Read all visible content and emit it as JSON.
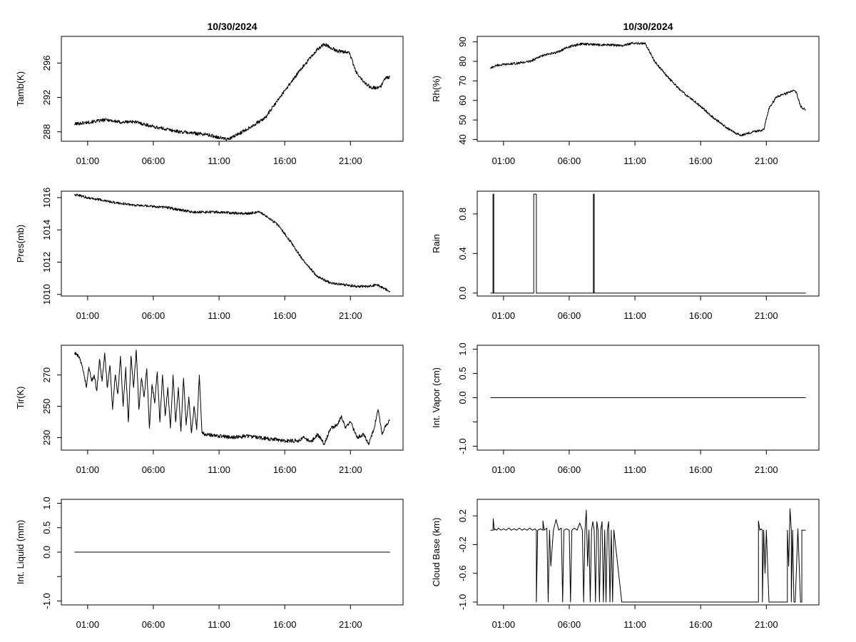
{
  "chart_data": [
    {
      "panel": "left-1",
      "type": "line",
      "title": "10/30/2024",
      "xlabel": "",
      "ylabel": "Tamb(K)",
      "x_ticks": [
        "01:00",
        "06:00",
        "11:00",
        "16:00",
        "21:00"
      ],
      "x_tick_hours": [
        1,
        6,
        11,
        16,
        21
      ],
      "xlim": [
        -1,
        25
      ],
      "ylim": [
        286.9,
        299.1
      ],
      "y_ticks": [
        288,
        292,
        296
      ],
      "y_tick_labels": [
        "288",
        "292",
        "296"
      ],
      "noise": 0.2,
      "series": [
        {
          "name": "Tamb",
          "x": [
            0,
            1,
            2.5,
            3.5,
            4.5,
            6,
            8,
            10,
            11.7,
            13,
            14.5,
            16,
            17.5,
            18.5,
            19,
            20,
            20.9,
            21.4,
            22,
            22.5,
            23,
            23.3,
            23.6,
            24
          ],
          "y": [
            288.9,
            289.1,
            289.4,
            289.1,
            289.2,
            288.6,
            288.0,
            287.7,
            287.1,
            288.2,
            289.6,
            292.8,
            295.8,
            297.6,
            298.2,
            297.4,
            297.3,
            295.0,
            293.8,
            293.2,
            293.1,
            293.2,
            294.2,
            294.4
          ]
        }
      ]
    },
    {
      "panel": "right-1",
      "type": "line",
      "title": "10/30/2024",
      "xlabel": "",
      "ylabel": "Rh(%)",
      "x_ticks": [
        "01:00",
        "06:00",
        "11:00",
        "16:00",
        "21:00"
      ],
      "x_tick_hours": [
        1,
        6,
        11,
        16,
        21
      ],
      "xlim": [
        -1,
        25
      ],
      "ylim": [
        39.1,
        92.8
      ],
      "y_ticks": [
        40,
        50,
        60,
        70,
        80,
        90
      ],
      "y_tick_labels": [
        "40",
        "50",
        "60",
        "70",
        "80",
        "90"
      ],
      "noise": 0.6,
      "series": [
        {
          "name": "Rh",
          "x": [
            0,
            0.5,
            2,
            3,
            4,
            5,
            6,
            7,
            8,
            9,
            10,
            11,
            11.8,
            12.5,
            13.5,
            14.5,
            16,
            17,
            18,
            19,
            20,
            20.8,
            21.2,
            21.8,
            22.5,
            23,
            23.3,
            23.6,
            24
          ],
          "y": [
            76.5,
            78,
            79,
            80,
            83,
            84.5,
            87.5,
            89,
            88.5,
            88.5,
            88,
            89.5,
            89,
            80,
            72,
            65,
            57,
            51,
            46,
            42,
            44,
            45,
            56,
            62,
            63.5,
            65,
            64,
            57,
            55
          ]
        }
      ]
    },
    {
      "panel": "left-2",
      "type": "line",
      "title": "",
      "xlabel": "",
      "ylabel": "Pres(mb)",
      "x_ticks": [
        "01:00",
        "06:00",
        "11:00",
        "16:00",
        "21:00"
      ],
      "x_tick_hours": [
        1,
        6,
        11,
        16,
        21
      ],
      "xlim": [
        -1,
        25
      ],
      "ylim": [
        1009.9,
        1016.4
      ],
      "y_ticks": [
        1010,
        1012,
        1014,
        1016
      ],
      "y_tick_labels": [
        "1010",
        "1012",
        "1014",
        "1016"
      ],
      "noise": 0.08,
      "series": [
        {
          "name": "Pres",
          "x": [
            0,
            1,
            3,
            5,
            7,
            9,
            11,
            13,
            14,
            14.5,
            15.5,
            16.5,
            17.5,
            18.5,
            19.5,
            20.5,
            21.5,
            22.5,
            23,
            23.5,
            24
          ],
          "y": [
            1016.2,
            1016.0,
            1015.7,
            1015.5,
            1015.4,
            1015.1,
            1015.1,
            1015.0,
            1015.1,
            1014.9,
            1014.3,
            1013.2,
            1012.0,
            1011.1,
            1010.7,
            1010.6,
            1010.5,
            1010.5,
            1010.6,
            1010.4,
            1010.2
          ]
        }
      ]
    },
    {
      "panel": "right-2",
      "type": "line",
      "title": "",
      "xlabel": "",
      "ylabel": "Rain",
      "x_ticks": [
        "01:00",
        "06:00",
        "11:00",
        "16:00",
        "21:00"
      ],
      "x_tick_hours": [
        1,
        6,
        11,
        16,
        21
      ],
      "xlim": [
        -1,
        25
      ],
      "ylim": [
        -0.03,
        1.03
      ],
      "y_ticks": [
        0.0,
        0.4,
        0.8
      ],
      "y_tick_labels": [
        "0.0",
        "0.4",
        "0.8"
      ],
      "noise": 0,
      "series": [
        {
          "name": "Rain",
          "x": [
            0,
            0.2,
            0.2,
            0.26,
            0.26,
            3.3,
            3.3,
            3.5,
            3.5,
            7.84,
            7.84,
            7.9,
            7.9,
            24
          ],
          "y": [
            0,
            0,
            1,
            1,
            0,
            0,
            1,
            1,
            0,
            0,
            1,
            1,
            0,
            0
          ]
        }
      ]
    },
    {
      "panel": "left-3",
      "type": "line",
      "title": "",
      "xlabel": "",
      "ylabel": "Tir(K)",
      "x_ticks": [
        "01:00",
        "06:00",
        "11:00",
        "16:00",
        "21:00"
      ],
      "x_tick_hours": [
        1,
        6,
        11,
        16,
        21
      ],
      "xlim": [
        -1,
        25
      ],
      "ylim": [
        222,
        289
      ],
      "y_ticks": [
        230,
        250,
        270
      ],
      "y_tick_labels": [
        "230",
        "250",
        "270"
      ],
      "noise": 1.2,
      "series": [
        {
          "name": "Tir",
          "x": [
            0,
            0.3,
            0.5,
            0.7,
            0.9,
            1.1,
            1.3,
            1.5,
            1.7,
            1.9,
            2.1,
            2.3,
            2.5,
            2.7,
            2.9,
            3.1,
            3.3,
            3.5,
            3.7,
            3.9,
            4.1,
            4.3,
            4.5,
            4.7,
            4.9,
            5.1,
            5.3,
            5.5,
            5.7,
            5.9,
            6.1,
            6.3,
            6.5,
            6.7,
            6.9,
            7.1,
            7.3,
            7.5,
            7.7,
            7.9,
            8.1,
            8.3,
            8.5,
            8.7,
            8.9,
            9.1,
            9.3,
            9.5,
            9.7,
            10,
            11,
            12,
            13,
            14,
            15,
            16,
            17,
            17.5,
            18,
            18.5,
            19,
            19.5,
            20,
            20.3,
            20.6,
            21,
            21.5,
            22,
            22.4,
            22.8,
            23.1,
            23.4,
            23.7,
            24
          ],
          "y": [
            284,
            282,
            278,
            272,
            262,
            275,
            266,
            270,
            260,
            280,
            266,
            284,
            262,
            276,
            248,
            270,
            258,
            282,
            250,
            275,
            240,
            282,
            262,
            286,
            248,
            268,
            256,
            274,
            236,
            264,
            252,
            272,
            240,
            270,
            244,
            262,
            236,
            270,
            240,
            262,
            234,
            268,
            238,
            256,
            233,
            250,
            235,
            270,
            233,
            232,
            231,
            230,
            231,
            230,
            229,
            228,
            228,
            230,
            227,
            232,
            226,
            236,
            238,
            244,
            236,
            240,
            230,
            232,
            226,
            236,
            248,
            232,
            238,
            241
          ]
        }
      ]
    },
    {
      "panel": "right-3",
      "type": "line",
      "title": "",
      "xlabel": "",
      "ylabel": "Int. Vapor (cm)",
      "x_ticks": [
        "01:00",
        "06:00",
        "11:00",
        "16:00",
        "21:00"
      ],
      "x_tick_hours": [
        1,
        6,
        11,
        16,
        21
      ],
      "xlim": [
        -1,
        25
      ],
      "ylim": [
        -1.08,
        1.08
      ],
      "y_ticks": [
        -1.0,
        -0.5,
        0.0,
        0.5,
        1.0
      ],
      "y_tick_labels": [
        "-1.0",
        "",
        "0.0",
        "0.5",
        "1.0"
      ],
      "noise": 0,
      "series": [
        {
          "name": "Int. Vapor",
          "x": [
            0,
            24
          ],
          "y": [
            0,
            0
          ]
        }
      ]
    },
    {
      "panel": "left-4",
      "type": "line",
      "title": "",
      "xlabel": "",
      "ylabel": "Int. Liquid (mm)",
      "x_ticks": [
        "01:00",
        "06:00",
        "11:00",
        "16:00",
        "21:00"
      ],
      "x_tick_hours": [
        1,
        6,
        11,
        16,
        21
      ],
      "xlim": [
        -1,
        25
      ],
      "ylim": [
        -1.08,
        1.08
      ],
      "y_ticks": [
        -1.0,
        -0.5,
        0.0,
        0.5,
        1.0
      ],
      "y_tick_labels": [
        "-1.0",
        "",
        "0.0",
        "0.5",
        "1.0"
      ],
      "noise": 0,
      "series": [
        {
          "name": "Int. Liquid",
          "x": [
            0,
            24
          ],
          "y": [
            0,
            0
          ]
        }
      ]
    },
    {
      "panel": "right-4",
      "type": "line",
      "title": "",
      "xlabel": "",
      "ylabel": "Cloud Base (km)",
      "x_ticks": [
        "01:00",
        "06:00",
        "11:00",
        "16:00",
        "21:00"
      ],
      "x_tick_hours": [
        1,
        6,
        11,
        16,
        21
      ],
      "xlim": [
        -1,
        25
      ],
      "ylim": [
        -1.04,
        0.43
      ],
      "y_ticks": [
        -1.0,
        -0.6,
        -0.2,
        0.2
      ],
      "y_tick_labels": [
        "-1.0",
        "-0.6",
        "-0.2",
        "0.2"
      ],
      "noise": 0,
      "series": [
        {
          "name": "Cloud Base",
          "x": [
            0,
            0.2,
            0.22,
            0.3,
            0.3,
            0.5,
            0.6,
            0.8,
            1.0,
            1.2,
            1.4,
            1.6,
            1.8,
            2.0,
            2.2,
            2.4,
            2.6,
            2.8,
            3.0,
            3.2,
            3.4,
            3.5,
            3.5,
            3.6,
            3.8,
            4.0,
            4.0,
            4.1,
            4.3,
            4.4,
            4.5,
            4.6,
            4.8,
            5.0,
            5.2,
            5.4,
            5.5,
            5.6,
            5.8,
            6.0,
            6.1,
            6.2,
            6.4,
            6.6,
            6.8,
            7.0,
            7.1,
            7.2,
            7.3,
            7.4,
            7.5,
            7.6,
            7.7,
            7.8,
            7.9,
            8.0,
            8.1,
            8.2,
            8.3,
            8.4,
            8.5,
            8.6,
            8.7,
            8.8,
            8.9,
            9.0,
            9.1,
            9.2,
            9.3,
            9.4,
            10,
            12,
            14,
            16,
            18,
            19.5,
            20.4,
            20.4,
            20.5,
            20.6,
            20.7,
            20.7,
            20.8,
            20.9,
            21.0,
            21.2,
            22.0,
            22.6,
            22.6,
            22.7,
            22.8,
            22.9,
            22.9,
            23.0,
            23.1,
            23.2,
            23.4,
            23.6,
            23.7,
            23.7,
            23.8,
            24
          ],
          "y": [
            0,
            0,
            0.16,
            0,
            0.02,
            0,
            0.03,
            0,
            0.02,
            0,
            0.03,
            0,
            0.02,
            0,
            0.03,
            0,
            0.02,
            0,
            0.03,
            0,
            0.02,
            0,
            -1,
            0,
            0.02,
            0,
            0.13,
            0,
            0.03,
            -1,
            0,
            -0.5,
            0,
            0.15,
            0,
            0.03,
            -1,
            0,
            0.02,
            0,
            -1,
            0,
            0.03,
            0,
            0.1,
            0,
            -1,
            0,
            0.28,
            -0.5,
            0,
            -1,
            0,
            0.12,
            0,
            -1,
            0.12,
            0,
            -1,
            0,
            0.12,
            -1,
            0,
            -1,
            0,
            0.12,
            -1,
            0,
            -1,
            0,
            -1,
            -1,
            -1,
            -1,
            -1,
            -1,
            -1,
            0.13,
            0,
            0.02,
            0,
            -1,
            0,
            -0.6,
            0,
            -1,
            -1,
            -1,
            0,
            -0.5,
            0.3,
            0,
            -1,
            0,
            -1,
            -1,
            0.02,
            -1,
            -1,
            0,
            0,
            0
          ]
        }
      ]
    }
  ]
}
